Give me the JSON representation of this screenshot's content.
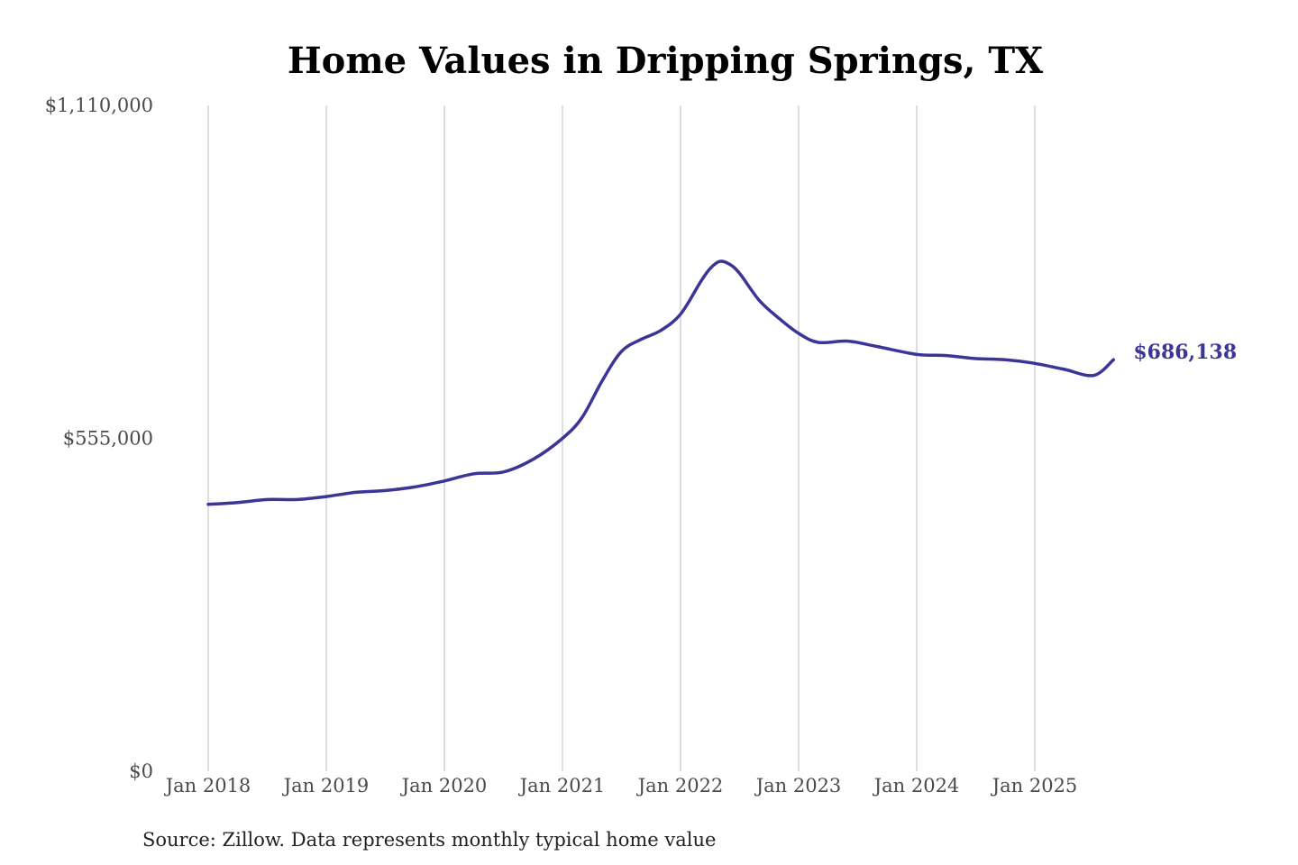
{
  "chart_data": {
    "type": "line",
    "title": "Home Values in Dripping Springs, TX",
    "xlabel": "",
    "ylabel": "",
    "source": "Source: Zillow. Data represents monthly typical home value",
    "ylim": [
      0,
      1110000
    ],
    "y_ticks": [
      {
        "value": 1110000,
        "label": "$1,110,000"
      },
      {
        "value": 555000,
        "label": "$555,000"
      },
      {
        "value": 0,
        "label": "$0"
      }
    ],
    "x_ticks": [
      {
        "value": "2018-01",
        "label": "Jan 2018"
      },
      {
        "value": "2019-01",
        "label": "Jan 2019"
      },
      {
        "value": "2020-01",
        "label": "Jan 2020"
      },
      {
        "value": "2021-01",
        "label": "Jan 2021"
      },
      {
        "value": "2022-01",
        "label": "Jan 2022"
      },
      {
        "value": "2023-01",
        "label": "Jan 2023"
      },
      {
        "value": "2024-01",
        "label": "Jan 2024"
      },
      {
        "value": "2025-01",
        "label": "Jan 2025"
      }
    ],
    "grid": {
      "vertical": true,
      "horizontal": false
    },
    "line_color": "#3a3597",
    "end_label": "$686,138",
    "series": [
      {
        "x": [
          "2018-01",
          "2018-04",
          "2018-07",
          "2018-10",
          "2019-01",
          "2019-04",
          "2019-07",
          "2019-10",
          "2020-01",
          "2020-04",
          "2020-07",
          "2020-10",
          "2021-01",
          "2021-03",
          "2021-05",
          "2021-07",
          "2021-09",
          "2021-11",
          "2022-01",
          "2022-03",
          "2022-04",
          "2022-05",
          "2022-06",
          "2022-07",
          "2022-09",
          "2022-11",
          "2023-01",
          "2023-03",
          "2023-06",
          "2023-09",
          "2024-01",
          "2024-04",
          "2024-07",
          "2024-10",
          "2025-01",
          "2025-04",
          "2025-07",
          "2025-09"
        ],
        "values": [
          445000,
          448000,
          453000,
          453000,
          458000,
          465000,
          468000,
          474000,
          484000,
          496000,
          499000,
          520000,
          555000,
          590000,
          650000,
          700000,
          720000,
          735000,
          762000,
          815000,
          838000,
          850000,
          845000,
          830000,
          785000,
          755000,
          730000,
          715000,
          717000,
          708000,
          695000,
          693000,
          688000,
          686000,
          680000,
          670000,
          660000,
          686138
        ]
      }
    ]
  }
}
